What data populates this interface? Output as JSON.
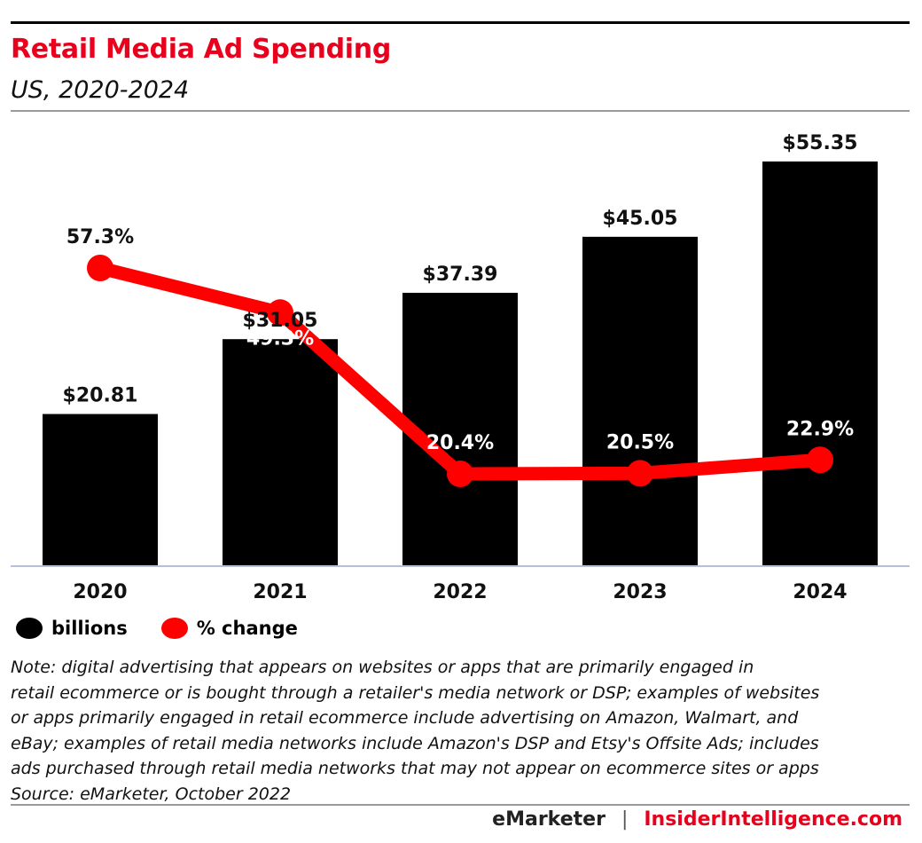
{
  "header": {
    "title": "Retail Media Ad Spending",
    "subtitle": "US, 2020-2024"
  },
  "legend": {
    "items": [
      {
        "label": "billions",
        "color": "#000000"
      },
      {
        "label": "% change",
        "color": "#ff0000"
      }
    ]
  },
  "note": {
    "lines": [
      "Note: digital advertising that appears on websites or apps that are primarily engaged in",
      "retail ecommerce or is bought through a retailer's media network or DSP; examples of websites",
      "or apps primarily engaged in retail ecommerce include advertising on Amazon, Walmart, and",
      "eBay; examples of retail media networks include Amazon's DSP and Etsy's Offsite Ads; includes",
      "ads purchased through retail media networks that may not appear on ecommerce sites or apps"
    ],
    "source": "Source: eMarketer, October 2022"
  },
  "footer": {
    "brand_left": "eMarketer",
    "separator": "|",
    "brand_right": "InsiderIntelligence.com"
  },
  "chart_data": {
    "type": "bar",
    "title": "Retail Media Ad Spending",
    "subtitle": "US, 2020-2024",
    "categories": [
      "2020",
      "2021",
      "2022",
      "2023",
      "2024"
    ],
    "series": [
      {
        "name": "billions",
        "type": "bar",
        "values": [
          20.81,
          31.05,
          37.39,
          45.05,
          55.35
        ],
        "labels": [
          "$20.81",
          "$31.05",
          "$37.39",
          "$45.05",
          "$55.35"
        ],
        "color": "#000000"
      },
      {
        "name": "% change",
        "type": "line",
        "values": [
          57.3,
          49.3,
          20.4,
          20.5,
          22.9
        ],
        "labels": [
          "57.3%",
          "49.3%",
          "20.4%",
          "20.5%",
          "22.9%"
        ],
        "color": "#ff0000"
      }
    ],
    "grid": false,
    "legend_position": "bottom-left"
  }
}
